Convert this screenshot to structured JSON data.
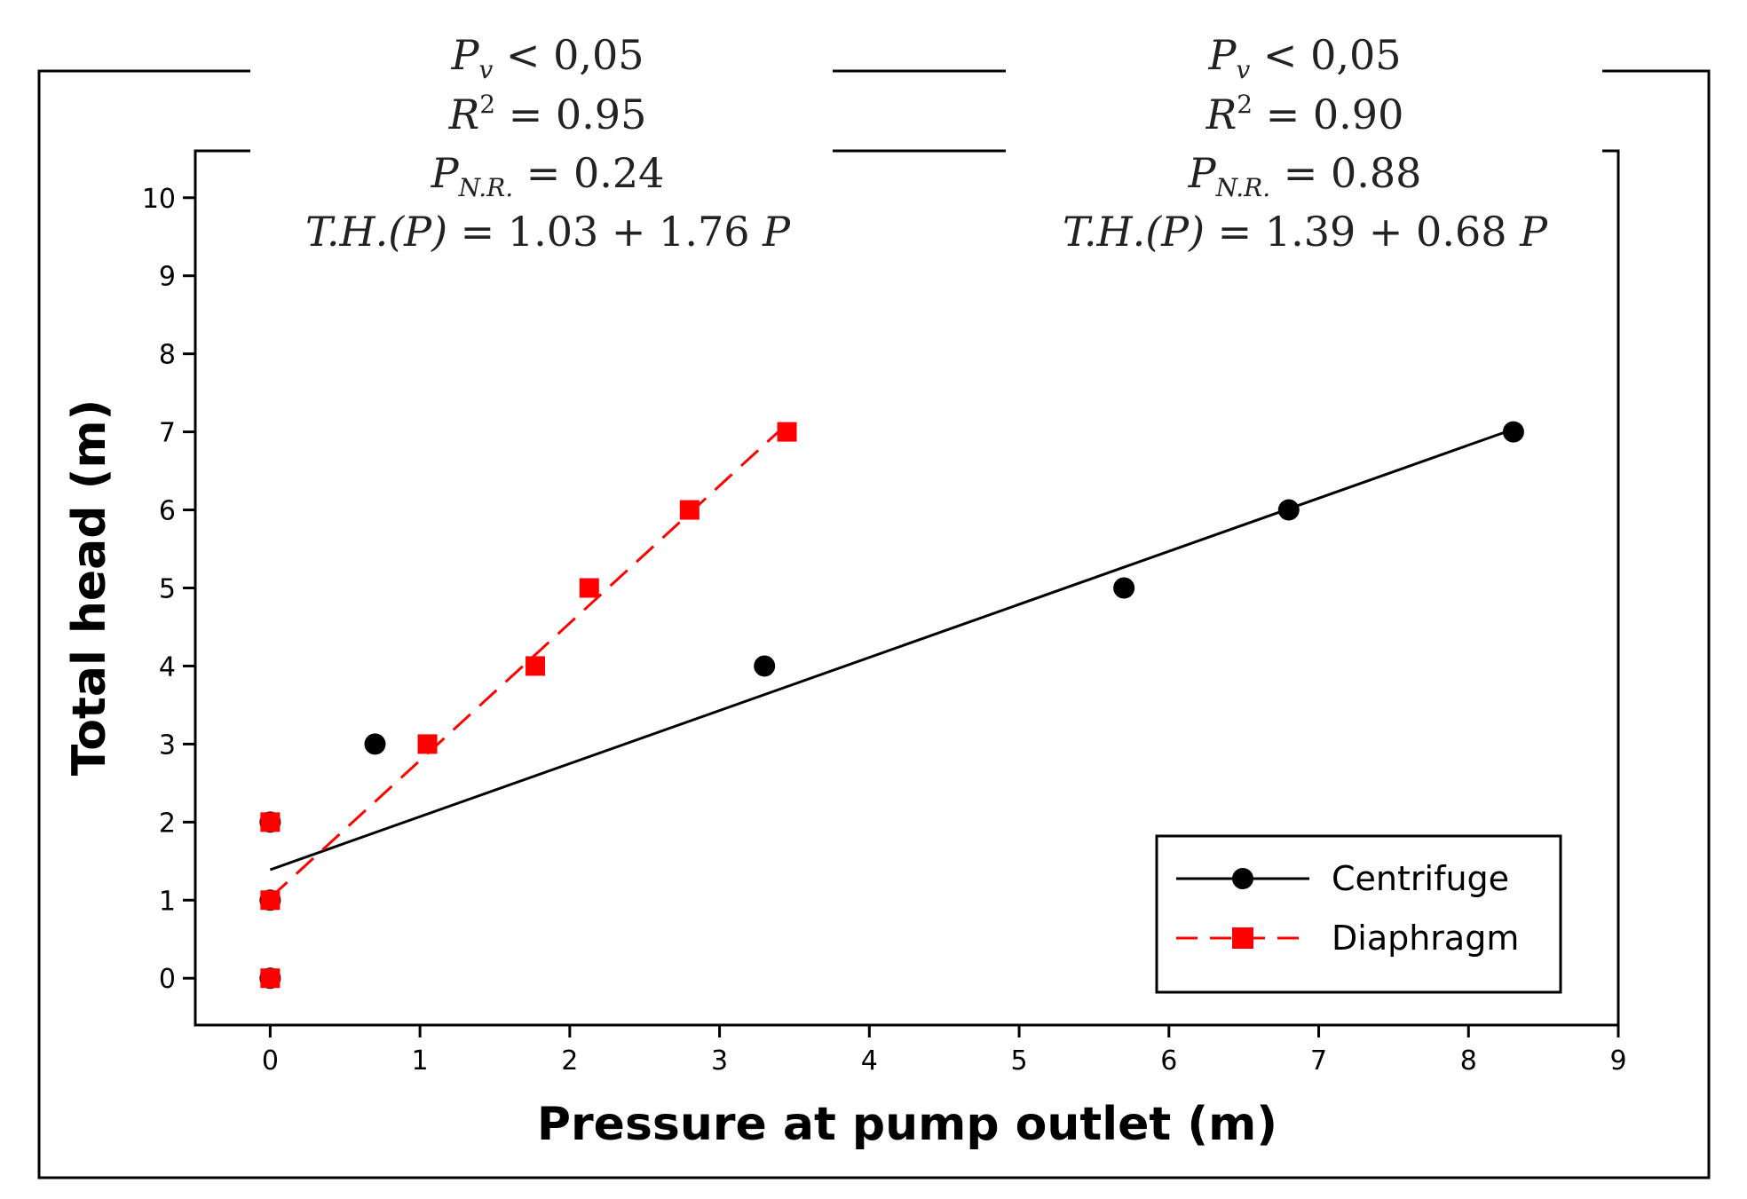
{
  "chart_data": {
    "type": "scatter",
    "xlabel": "Pressure at pump outlet (m)",
    "ylabel": "Total head (m)",
    "xlim": [
      -0.5,
      9.0
    ],
    "ylim": [
      -0.6,
      10.6
    ],
    "x_ticks": [
      0,
      1,
      2,
      3,
      4,
      5,
      6,
      7,
      8,
      9
    ],
    "y_ticks": [
      0,
      1,
      2,
      3,
      4,
      5,
      6,
      7,
      8,
      9,
      10
    ],
    "grid": false,
    "legend_position": "bottom-right",
    "series": [
      {
        "name": "Centrifuge",
        "marker": "circle",
        "line_style": "solid",
        "color": "#000000",
        "points": [
          {
            "x": 0.0,
            "y": 0
          },
          {
            "x": 0.0,
            "y": 1
          },
          {
            "x": 0.0,
            "y": 2
          },
          {
            "x": 0.7,
            "y": 3
          },
          {
            "x": 3.3,
            "y": 4
          },
          {
            "x": 5.7,
            "y": 5
          },
          {
            "x": 6.8,
            "y": 6
          },
          {
            "x": 8.3,
            "y": 7
          }
        ],
        "fit": {
          "intercept": 1.39,
          "slope": 0.68,
          "x_range": [
            0.0,
            8.3
          ]
        }
      },
      {
        "name": "Diaphragm",
        "marker": "square",
        "line_style": "dashed",
        "color": "#ff0000",
        "points": [
          {
            "x": 0.0,
            "y": 0
          },
          {
            "x": 0.0,
            "y": 1
          },
          {
            "x": 0.0,
            "y": 2
          },
          {
            "x": 1.05,
            "y": 3
          },
          {
            "x": 1.77,
            "y": 4
          },
          {
            "x": 2.13,
            "y": 5
          },
          {
            "x": 2.8,
            "y": 6
          },
          {
            "x": 3.45,
            "y": 7
          }
        ],
        "fit": {
          "intercept": 1.03,
          "slope": 1.76,
          "x_range": [
            0.0,
            3.45
          ]
        }
      }
    ],
    "annotations": {
      "left": {
        "pv_symbol": "P",
        "pv_sub": "v",
        "pv_text": " < 0,05",
        "r2_symbol": "R",
        "r2_sup": "2",
        "r2_text": " = 0.95",
        "pnr_symbol": "P",
        "pnr_sub": "N.R.",
        "pnr_text": " = 0.24",
        "eq_lhs": "T.H.(P)",
        "eq_rhs": " = 1.03 + 1.76 ",
        "eq_var": "P"
      },
      "right": {
        "pv_symbol": "P",
        "pv_sub": "v",
        "pv_text": " < 0,05",
        "r2_symbol": "R",
        "r2_sup": "2",
        "r2_text": " = 0.90",
        "pnr_symbol": "P",
        "pnr_sub": "N.R.",
        "pnr_text": " = 0.88",
        "eq_lhs": "T.H.(P)",
        "eq_rhs": " = 1.39 + 0.68 ",
        "eq_var": "P"
      }
    }
  }
}
